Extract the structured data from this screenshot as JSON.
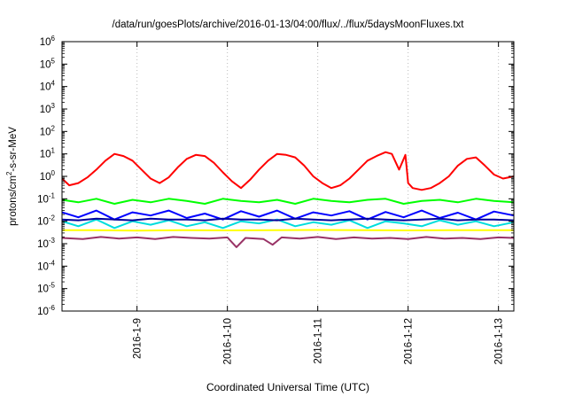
{
  "chart_data": {
    "type": "line",
    "title": "/data/run/goesPlots/archive/2016-01-13/04:00/flux/../flux/5daysMoonFluxes.txt",
    "xlabel": "Coordinated Universal Time (UTC)",
    "ylabel_parts": {
      "before": "protons/cm",
      "sup": "2",
      "after": "-s-sr-MeV"
    },
    "y_scale": "log",
    "ylim_exponents": [
      -6,
      6
    ],
    "y_ticks": [
      {
        "base": "10",
        "exp": "6"
      },
      {
        "base": "10",
        "exp": "5"
      },
      {
        "base": "10",
        "exp": "4"
      },
      {
        "base": "10",
        "exp": "3"
      },
      {
        "base": "10",
        "exp": "2"
      },
      {
        "base": "10",
        "exp": "1"
      },
      {
        "base": "10",
        "exp": "0"
      },
      {
        "base": "10",
        "exp": "-1"
      },
      {
        "base": "10",
        "exp": "-2"
      },
      {
        "base": "10",
        "exp": "-3"
      },
      {
        "base": "10",
        "exp": "-4"
      },
      {
        "base": "10",
        "exp": "-5"
      },
      {
        "base": "10",
        "exp": "-6"
      }
    ],
    "x_range_days": [
      "2016-01-08 04:00",
      "2016-01-13 04:00"
    ],
    "x_ticks": [
      "2016-1-9",
      "2016-1-10",
      "2016-1-11",
      "2016-1-12",
      "2016-1-13"
    ],
    "grid": "vertical dotted",
    "legend": "none",
    "series": [
      {
        "color": "#ff0000",
        "x": [
          8.17,
          8.25,
          8.35,
          8.45,
          8.55,
          8.65,
          8.75,
          8.85,
          8.95,
          9.05,
          9.15,
          9.25,
          9.35,
          9.45,
          9.55,
          9.65,
          9.75,
          9.85,
          9.95,
          10.05,
          10.15,
          10.25,
          10.35,
          10.45,
          10.55,
          10.65,
          10.75,
          10.85,
          10.95,
          11.05,
          11.15,
          11.25,
          11.35,
          11.45,
          11.55,
          11.65,
          11.75,
          11.82,
          11.9,
          11.97,
          12.0,
          12.05,
          12.15,
          12.25,
          12.35,
          12.45,
          12.55,
          12.65,
          12.75,
          12.85,
          12.95,
          13.05,
          13.17
        ],
        "y": [
          0.8,
          0.4,
          0.5,
          0.9,
          2.0,
          5.0,
          10.0,
          8.0,
          5.0,
          2.0,
          0.8,
          0.5,
          0.9,
          2.5,
          6.0,
          9.0,
          8.0,
          4.0,
          1.5,
          0.6,
          0.3,
          0.7,
          2.0,
          5.0,
          10.0,
          9.0,
          7.0,
          3.0,
          1.0,
          0.5,
          0.3,
          0.4,
          0.8,
          2.0,
          5.0,
          8.0,
          12.0,
          10.0,
          2.0,
          9.0,
          0.5,
          0.3,
          0.25,
          0.3,
          0.5,
          1.0,
          3.0,
          6.0,
          7.0,
          3.0,
          1.2,
          0.8,
          1.0
        ]
      },
      {
        "color": "#00ff00",
        "x": [
          8.17,
          8.35,
          8.55,
          8.75,
          8.95,
          9.15,
          9.35,
          9.55,
          9.75,
          9.95,
          10.15,
          10.35,
          10.55,
          10.75,
          10.95,
          11.15,
          11.35,
          11.55,
          11.75,
          11.95,
          12.15,
          12.35,
          12.55,
          12.75,
          12.95,
          13.17
        ],
        "y": [
          0.09,
          0.07,
          0.1,
          0.06,
          0.09,
          0.07,
          0.1,
          0.08,
          0.06,
          0.1,
          0.08,
          0.07,
          0.09,
          0.06,
          0.1,
          0.08,
          0.07,
          0.09,
          0.1,
          0.06,
          0.08,
          0.09,
          0.07,
          0.1,
          0.08,
          0.07
        ]
      },
      {
        "color": "#00dddd",
        "x": [
          8.17,
          8.35,
          8.55,
          8.75,
          8.95,
          9.15,
          9.35,
          9.55,
          9.75,
          9.95,
          10.15,
          10.35,
          10.55,
          10.75,
          10.95,
          11.15,
          11.35,
          11.55,
          11.75,
          11.95,
          12.15,
          12.35,
          12.55,
          12.75,
          12.95,
          13.17
        ],
        "y": [
          0.01,
          0.006,
          0.012,
          0.005,
          0.01,
          0.007,
          0.011,
          0.006,
          0.009,
          0.005,
          0.01,
          0.008,
          0.012,
          0.006,
          0.009,
          0.007,
          0.011,
          0.005,
          0.01,
          0.008,
          0.006,
          0.011,
          0.007,
          0.01,
          0.006,
          0.009
        ]
      },
      {
        "color": "#0000ff",
        "x": [
          8.17,
          8.35,
          8.55,
          8.75,
          8.95,
          9.15,
          9.35,
          9.55,
          9.75,
          9.95,
          10.15,
          10.35,
          10.55,
          10.75,
          10.95,
          11.15,
          11.35,
          11.55,
          11.75,
          11.95,
          12.15,
          12.35,
          12.55,
          12.75,
          12.95,
          13.17
        ],
        "y": [
          0.025,
          0.015,
          0.03,
          0.012,
          0.025,
          0.018,
          0.03,
          0.014,
          0.022,
          0.012,
          0.028,
          0.016,
          0.03,
          0.013,
          0.025,
          0.018,
          0.028,
          0.012,
          0.026,
          0.015,
          0.03,
          0.014,
          0.024,
          0.012,
          0.027,
          0.018
        ]
      },
      {
        "color": "#000099",
        "x": [
          8.17,
          8.35,
          8.55,
          8.75,
          8.95,
          9.15,
          9.35,
          9.55,
          9.75,
          9.95,
          10.15,
          10.35,
          10.55,
          10.75,
          10.95,
          11.15,
          11.35,
          11.55,
          11.75,
          11.95,
          12.15,
          12.35,
          12.55,
          12.75,
          12.95,
          13.17
        ],
        "y": [
          0.012,
          0.011,
          0.013,
          0.012,
          0.011,
          0.013,
          0.012,
          0.012,
          0.011,
          0.013,
          0.012,
          0.012,
          0.011,
          0.013,
          0.012,
          0.011,
          0.012,
          0.013,
          0.012,
          0.011,
          0.012,
          0.013,
          0.011,
          0.012,
          0.012,
          0.011
        ]
      },
      {
        "color": "#ffff00",
        "x": [
          8.17,
          8.5,
          9.0,
          9.5,
          10.0,
          10.5,
          11.0,
          11.5,
          12.0,
          12.5,
          13.0,
          13.17
        ],
        "y": [
          0.004,
          0.004,
          0.0038,
          0.004,
          0.0039,
          0.004,
          0.0041,
          0.004,
          0.0039,
          0.004,
          0.004,
          0.004
        ]
      },
      {
        "color": "#993366",
        "x": [
          8.17,
          8.4,
          8.6,
          8.8,
          9.0,
          9.2,
          9.4,
          9.6,
          9.8,
          10.0,
          10.1,
          10.2,
          10.4,
          10.5,
          10.6,
          10.8,
          11.0,
          11.2,
          11.4,
          11.6,
          11.8,
          12.0,
          12.2,
          12.4,
          12.6,
          12.8,
          13.0,
          13.17
        ],
        "y": [
          0.0018,
          0.0016,
          0.002,
          0.0017,
          0.0019,
          0.0016,
          0.002,
          0.0018,
          0.0017,
          0.0019,
          0.0007,
          0.0018,
          0.0016,
          0.0009,
          0.0019,
          0.0017,
          0.002,
          0.0016,
          0.0019,
          0.0017,
          0.0018,
          0.0016,
          0.002,
          0.0017,
          0.0018,
          0.0016,
          0.0019,
          0.0018
        ]
      }
    ]
  }
}
